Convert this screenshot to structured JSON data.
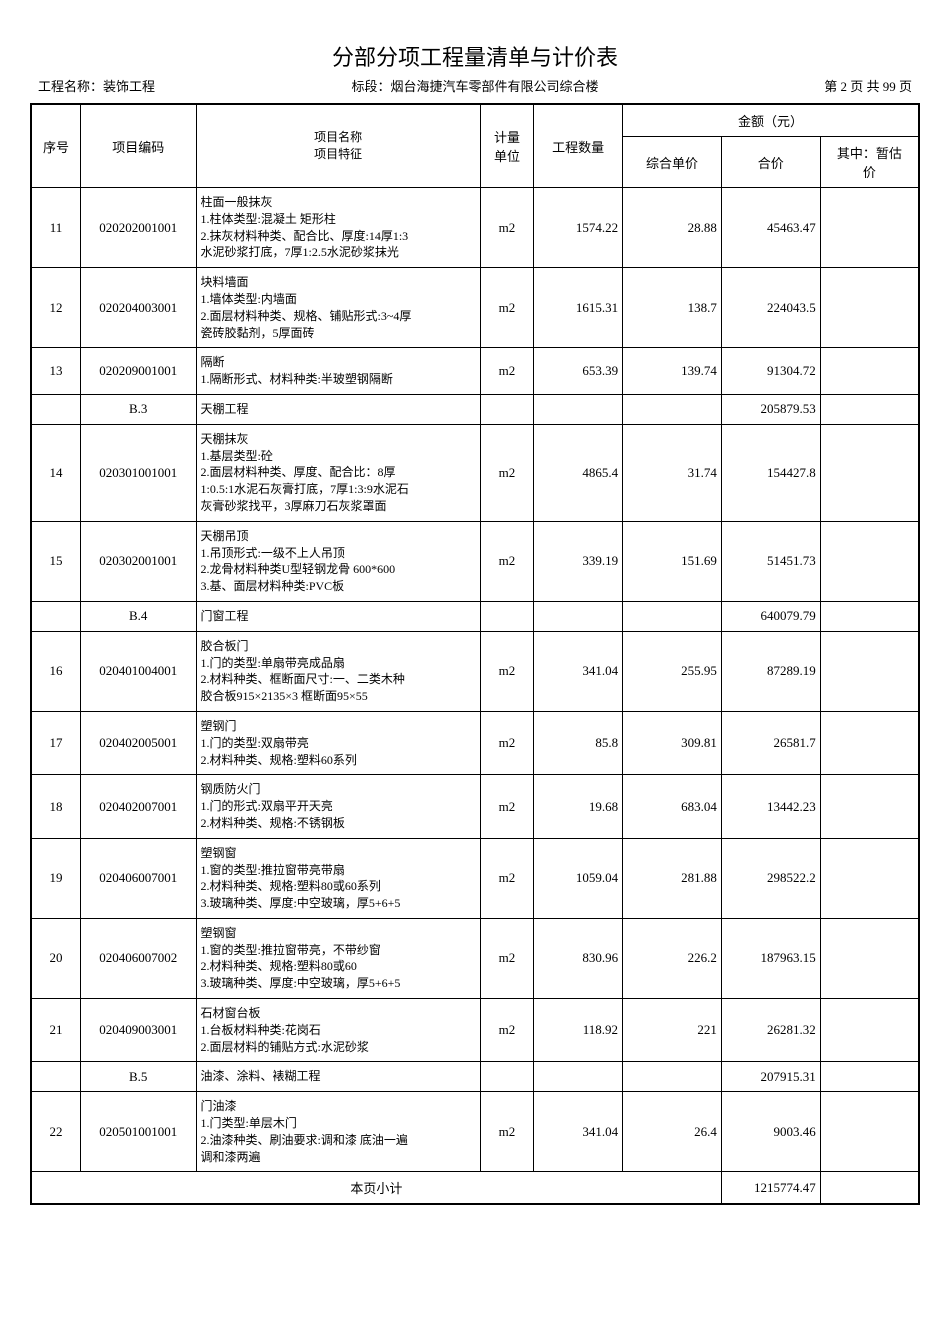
{
  "title": "分部分项工程量清单与计价表",
  "header": {
    "left_label": "工程名称：",
    "left_value": "装饰工程",
    "mid_label": "标段：",
    "mid_value": "烟台海捷汽车零部件有限公司综合楼",
    "right": "第 2 页 共 99 页"
  },
  "columns": {
    "seq": "序号",
    "code": "项目编码",
    "name": "项目名称\n项目特征",
    "unit": "计量\n单位",
    "qty": "工程数量",
    "amount_group": "金额（元）",
    "uprice": "综合单价",
    "total": "合价",
    "est": "其中：暂估\n价"
  },
  "rows": [
    {
      "type": "item",
      "seq": "11",
      "code": "020202001001",
      "name": "柱面一般抹灰\n1.柱体类型:混凝土 矩形柱\n2.抹灰材料种类、配合比、厚度:14厚1:3\n水泥砂浆打底，7厚1:2.5水泥砂浆抹光",
      "unit": "m2",
      "qty": "1574.22",
      "uprice": "28.88",
      "total": "45463.47",
      "est": ""
    },
    {
      "type": "item",
      "seq": "12",
      "code": "020204003001",
      "name": "块料墙面\n1.墙体类型:内墙面\n2.面层材料种类、规格、铺贴形式:3~4厚\n瓷砖胶黏剂，5厚面砖",
      "unit": "m2",
      "qty": "1615.31",
      "uprice": "138.7",
      "total": "224043.5",
      "est": ""
    },
    {
      "type": "item",
      "seq": "13",
      "code": "020209001001",
      "name": "隔断\n1.隔断形式、材料种类:半玻塑钢隔断",
      "unit": "m2",
      "qty": "653.39",
      "uprice": "139.74",
      "total": "91304.72",
      "est": ""
    },
    {
      "type": "section",
      "seq": "",
      "code": "B.3",
      "name": "天棚工程",
      "unit": "",
      "qty": "",
      "uprice": "",
      "total": "205879.53",
      "est": ""
    },
    {
      "type": "item",
      "seq": "14",
      "code": "020301001001",
      "name": "天棚抹灰\n1.基层类型:砼\n2.面层材料种类、厚度、配合比：8厚\n1:0.5:1水泥石灰膏打底，7厚1:3:9水泥石\n灰膏砂浆找平，3厚麻刀石灰浆罩面",
      "unit": "m2",
      "qty": "4865.4",
      "uprice": "31.74",
      "total": "154427.8",
      "est": ""
    },
    {
      "type": "item",
      "seq": "15",
      "code": "020302001001",
      "name": "天棚吊顶\n1.吊顶形式:一级不上人吊顶\n2.龙骨材料种类U型轻钢龙骨 600*600\n3.基、面层材料种类:PVC板",
      "unit": "m2",
      "qty": "339.19",
      "uprice": "151.69",
      "total": "51451.73",
      "est": ""
    },
    {
      "type": "section",
      "seq": "",
      "code": "B.4",
      "name": "门窗工程",
      "unit": "",
      "qty": "",
      "uprice": "",
      "total": "640079.79",
      "est": ""
    },
    {
      "type": "item",
      "seq": "16",
      "code": "020401004001",
      "name": "胶合板门\n1.门的类型:单扇带亮成品扇\n2.材料种类、框断面尺寸:一、二类木种\n胶合板915×2135×3 框断面95×55",
      "unit": "m2",
      "qty": "341.04",
      "uprice": "255.95",
      "total": "87289.19",
      "est": ""
    },
    {
      "type": "item",
      "seq": "17",
      "code": "020402005001",
      "name": "塑钢门\n1.门的类型:双扇带亮\n2.材料种类、规格:塑料60系列",
      "unit": "m2",
      "qty": "85.8",
      "uprice": "309.81",
      "total": "26581.7",
      "est": ""
    },
    {
      "type": "item",
      "seq": "18",
      "code": "020402007001",
      "name": "钢质防火门\n1.门的形式:双扇平开天亮\n2.材料种类、规格:不锈钢板",
      "unit": "m2",
      "qty": "19.68",
      "uprice": "683.04",
      "total": "13442.23",
      "est": ""
    },
    {
      "type": "item",
      "seq": "19",
      "code": "020406007001",
      "name": "塑钢窗\n1.窗的类型:推拉窗带亮带扇\n2.材料种类、规格:塑料80或60系列\n3.玻璃种类、厚度:中空玻璃，厚5+6+5",
      "unit": "m2",
      "qty": "1059.04",
      "uprice": "281.88",
      "total": "298522.2",
      "est": ""
    },
    {
      "type": "item",
      "seq": "20",
      "code": "020406007002",
      "name": "塑钢窗\n1.窗的类型:推拉窗带亮，不带纱窗\n2.材料种类、规格:塑料80或60\n3.玻璃种类、厚度:中空玻璃，厚5+6+5",
      "unit": "m2",
      "qty": "830.96",
      "uprice": "226.2",
      "total": "187963.15",
      "est": ""
    },
    {
      "type": "item",
      "seq": "21",
      "code": "020409003001",
      "name": "石材窗台板\n1.台板材料种类:花岗石\n2.面层材料的铺贴方式:水泥砂浆",
      "unit": "m2",
      "qty": "118.92",
      "uprice": "221",
      "total": "26281.32",
      "est": ""
    },
    {
      "type": "section",
      "seq": "",
      "code": "B.5",
      "name": "油漆、涂料、裱糊工程",
      "unit": "",
      "qty": "",
      "uprice": "",
      "total": "207915.31",
      "est": ""
    },
    {
      "type": "item",
      "seq": "22",
      "code": "020501001001",
      "name": "门油漆\n1.门类型:单层木门\n2.油漆种类、刷油要求:调和漆 底油一遍\n调和漆两遍",
      "unit": "m2",
      "qty": "341.04",
      "uprice": "26.4",
      "total": "9003.46",
      "est": ""
    }
  ],
  "subtotal": {
    "label": "本页小计",
    "total": "1215774.47"
  }
}
